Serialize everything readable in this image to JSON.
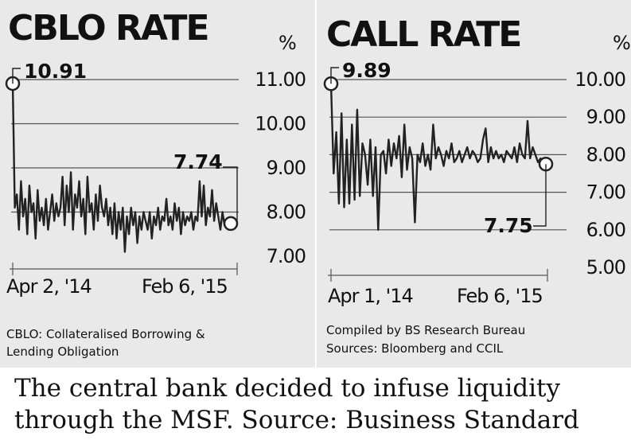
{
  "chart_data": [
    {
      "type": "line",
      "title": "CBLO RATE",
      "unit": "%",
      "ylim": [
        7.0,
        11.0
      ],
      "yticks": [
        "11.00",
        "10.00",
        "9.00",
        "8.00",
        "7.00"
      ],
      "xticks": [
        "Apr 2, '14",
        "Feb 6, '15"
      ],
      "series": [
        {
          "values": [
            10.91,
            8.1,
            8.4,
            7.6,
            8.7,
            7.9,
            8.3,
            7.5,
            8.6,
            8.0,
            8.2,
            7.4,
            8.5,
            7.8,
            8.1,
            7.7,
            8.3,
            7.6,
            8.0,
            8.4,
            7.8,
            8.2,
            7.9,
            8.1,
            8.8,
            7.7,
            8.6,
            8.0,
            8.9,
            7.6,
            8.4,
            8.1,
            8.7,
            7.9,
            8.3,
            7.5,
            8.8,
            8.0,
            8.2,
            7.6,
            8.4,
            7.8,
            8.6,
            8.1,
            7.9,
            8.3,
            7.7,
            8.1,
            7.5,
            8.2,
            7.4,
            8.0,
            7.6,
            8.1,
            7.1,
            7.9,
            7.5,
            8.1,
            7.7,
            8.0,
            7.3,
            7.9,
            7.6,
            8.0,
            7.8,
            7.6,
            8.0,
            7.4,
            7.9,
            7.7,
            8.1,
            7.6,
            7.9,
            7.8,
            8.3,
            7.7,
            7.9,
            7.6,
            8.2,
            7.8,
            8.1,
            7.5,
            8.0,
            7.7,
            7.9,
            7.8,
            8.0,
            7.6,
            7.9,
            7.8,
            8.7,
            7.9,
            8.6,
            7.7,
            8.1,
            7.9,
            8.5,
            7.8,
            8.2,
            7.9,
            7.6,
            8.0,
            7.7,
            7.8,
            7.6,
            7.74
          ]
        }
      ],
      "annotations": [
        {
          "label": "10.91",
          "value": 10.91
        },
        {
          "label": "7.74",
          "value": 7.74
        }
      ],
      "note": [
        "CBLO: Collateralised Borrowing &",
        "Lending Obligation"
      ]
    },
    {
      "type": "line",
      "title": "CALL RATE",
      "unit": "%",
      "ylim": [
        5.0,
        10.0
      ],
      "yticks": [
        "10.00",
        "9.00",
        "8.00",
        "7.00",
        "6.00",
        "5.00"
      ],
      "xticks": [
        "Apr 1, '14",
        "Feb 6, '15"
      ],
      "series": [
        {
          "values": [
            9.89,
            7.5,
            8.6,
            6.7,
            9.1,
            6.6,
            8.4,
            6.7,
            8.8,
            6.8,
            9.2,
            6.9,
            8.3,
            8.0,
            7.2,
            8.4,
            6.9,
            8.2,
            6.0,
            8.0,
            8.1,
            7.5,
            8.4,
            7.7,
            8.3,
            7.9,
            8.5,
            7.4,
            8.8,
            7.6,
            8.2,
            7.9,
            6.2,
            8.0,
            7.8,
            8.3,
            7.7,
            8.0,
            7.6,
            8.8,
            7.9,
            8.2,
            8.0,
            7.7,
            8.1,
            7.9,
            8.3,
            7.8,
            7.9,
            8.1,
            7.8,
            8.0,
            8.2,
            7.9,
            8.1,
            8.0,
            7.8,
            7.9,
            8.4,
            8.7,
            7.8,
            8.2,
            7.9,
            8.1,
            7.9,
            8.0,
            7.8,
            8.1,
            8.0,
            7.9,
            8.2,
            7.8,
            8.3,
            8.0,
            7.9,
            8.9,
            7.9,
            8.2,
            8.0,
            7.8,
            7.9,
            7.8,
            7.75
          ]
        }
      ],
      "annotations": [
        {
          "label": "9.89",
          "value": 9.89
        },
        {
          "label": "7.75",
          "value": 7.75
        }
      ],
      "note": [
        "Compiled by BS Research Bureau",
        "Sources: Bloomberg and CCIL"
      ]
    }
  ],
  "caption": {
    "line1": "The central bank decided to infuse liquidity",
    "line2": "through the MSF.   Source: Business Standard"
  }
}
